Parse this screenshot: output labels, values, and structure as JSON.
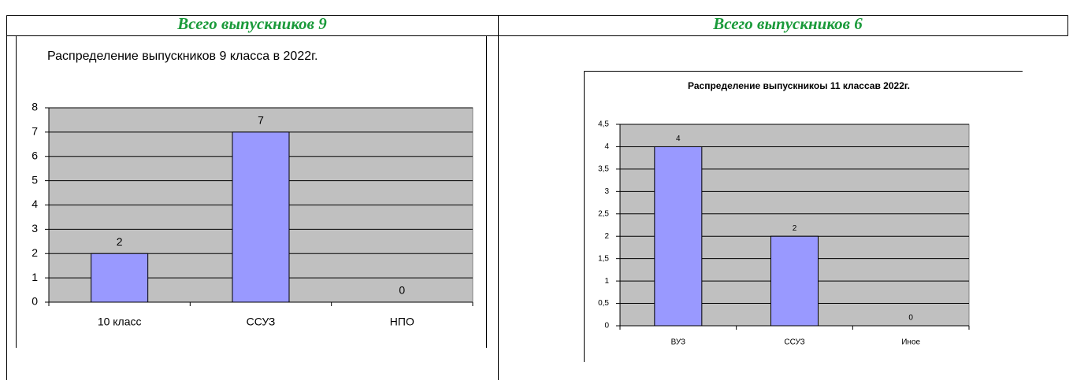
{
  "table": {
    "headers": [
      "Всего выпускников 9",
      "Всего выпускников 6"
    ]
  },
  "chart_data": [
    {
      "type": "bar",
      "title": "Распределение выпускников 9 класса в 2022г.",
      "categories": [
        "10 класс",
        "ССУЗ",
        "НПО"
      ],
      "values": [
        2,
        7,
        0
      ],
      "color": "#9999ff",
      "ylim": [
        0,
        8
      ],
      "yticks": [
        0,
        1,
        2,
        3,
        4,
        5,
        6,
        7,
        8
      ],
      "grid": true
    },
    {
      "type": "bar",
      "title": "Распределение выпускникоы 11 классав 2022г.",
      "categories": [
        "ВУЗ",
        "ССУЗ",
        "Иное"
      ],
      "values": [
        4,
        2,
        0
      ],
      "color": "#9999ff",
      "ylim": [
        0,
        4.5
      ],
      "yticks": [
        0,
        {
          "value": 0.5,
          "label": "0,5"
        },
        1,
        {
          "value": 1.5,
          "label": "1,5"
        },
        2,
        {
          "value": 2.5,
          "label": "2,5"
        },
        3,
        {
          "value": 3.5,
          "label": "3,5"
        },
        4,
        {
          "value": 4.5,
          "label": "4,5"
        }
      ],
      "grid": true
    }
  ]
}
